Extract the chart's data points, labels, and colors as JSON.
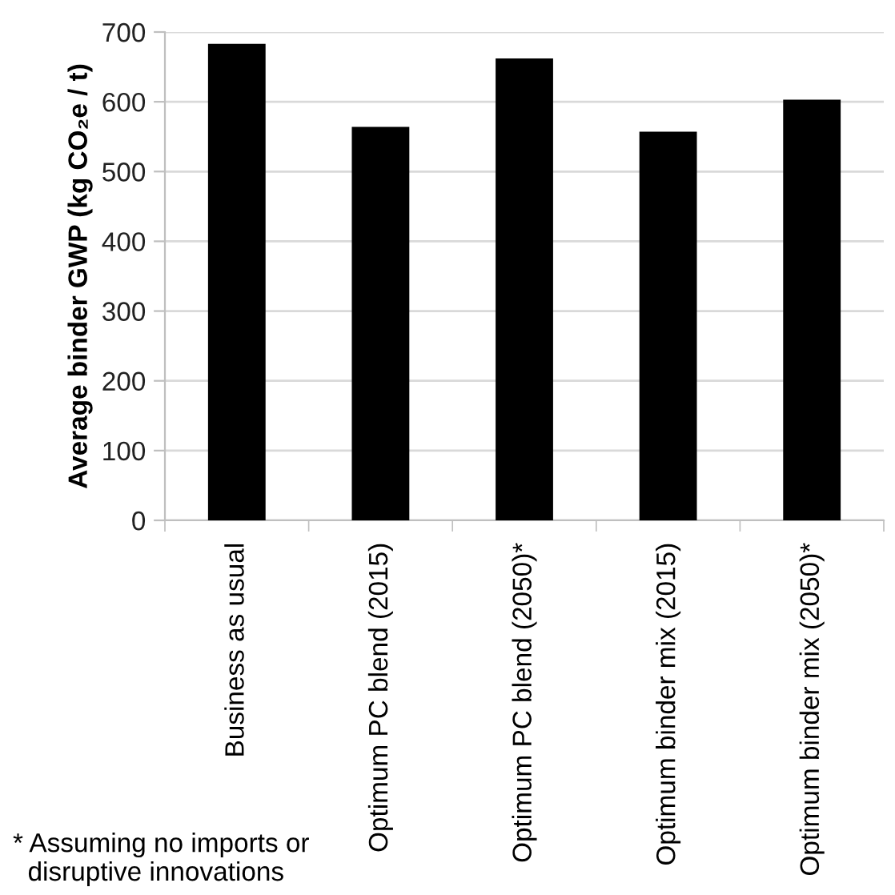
{
  "chart_data": {
    "type": "bar",
    "ylabel": "Average binder GWP (kg CO₂e / t)",
    "categories": [
      "Business as usual",
      "Optimum PC blend (2015)",
      "Optimum PC blend (2050)*",
      "Optimum binder mix (2015)",
      "Optimum binder mix (2050)*"
    ],
    "values": [
      683,
      564,
      662,
      557,
      603
    ],
    "color": "#000000",
    "ylim": [
      0,
      700
    ],
    "yticks": [
      0,
      100,
      200,
      300,
      400,
      500,
      600,
      700
    ],
    "grid": "y",
    "annotations": [
      "* Assuming no imports or\n  disruptive innovations"
    ]
  }
}
